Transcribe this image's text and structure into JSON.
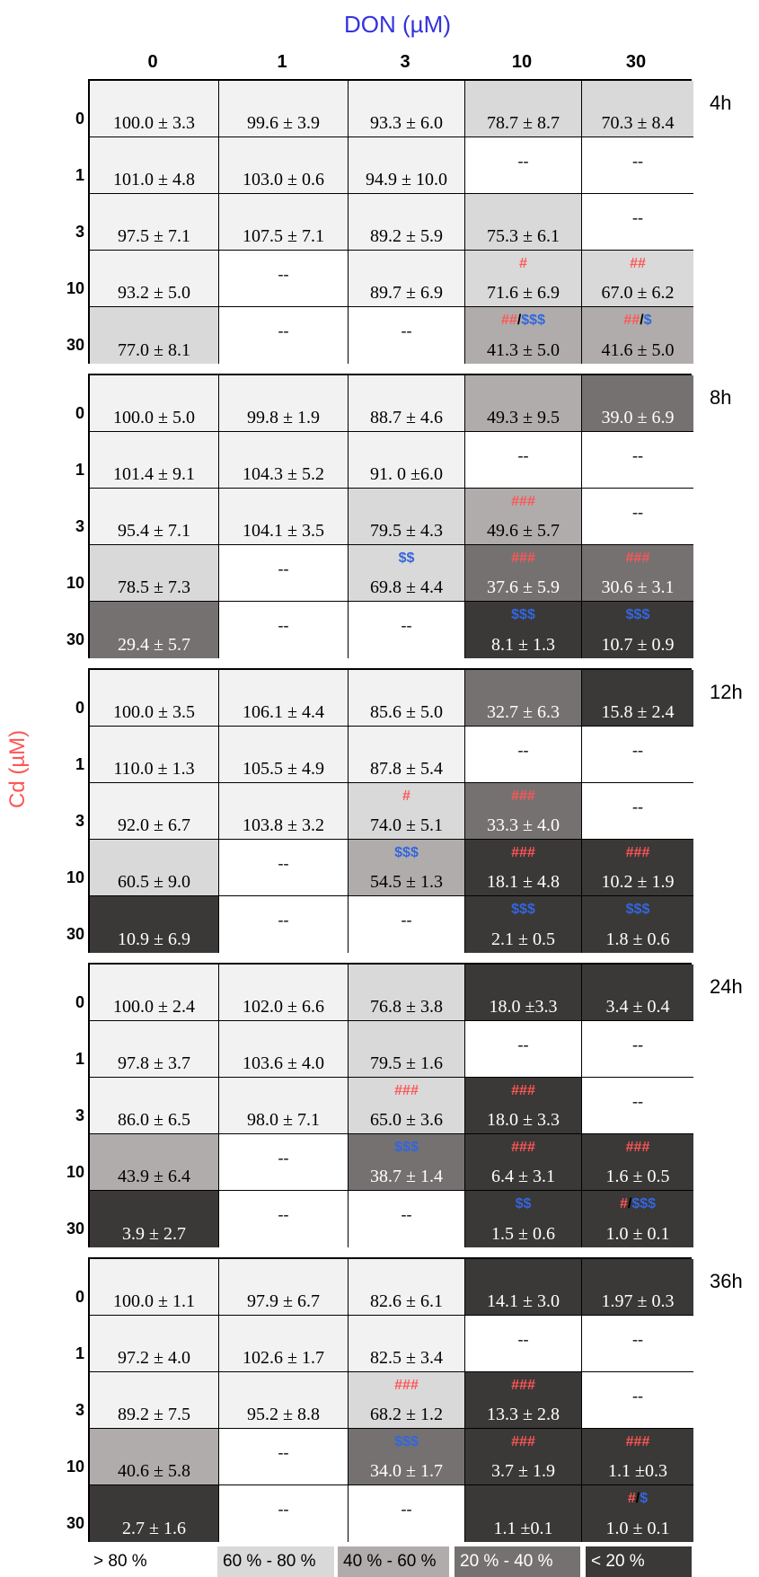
{
  "chart_data": {
    "type": "heatmap",
    "x_title": "DON (µM)",
    "y_title": "Cd    (µM)",
    "don_levels": [
      "0",
      "1",
      "3",
      "10",
      "30"
    ],
    "cd_levels": [
      "0",
      "1",
      "3",
      "10",
      "30"
    ],
    "missing_label": "--",
    "blocks": [
      {
        "time": "4h",
        "rows": [
          [
            {
              "v": "100.0 ± 3.3",
              "c": ">80"
            },
            {
              "v": "99.6 ± 3.9",
              "c": ">80"
            },
            {
              "v": "93.3 ± 6.0",
              "c": ">80"
            },
            {
              "v": "78.7 ± 8.7",
              "c": "60-80"
            },
            {
              "v": "70.3 ± 8.4",
              "c": "60-80"
            }
          ],
          [
            {
              "v": "101.0 ± 4.8",
              "c": ">80"
            },
            {
              "v": "103.0 ± 0.6",
              "c": ">80"
            },
            {
              "v": "94.9 ± 10.0",
              "c": ">80"
            },
            {
              "v": null,
              "c": "none"
            },
            {
              "v": null,
              "c": "none"
            }
          ],
          [
            {
              "v": "97.5 ± 7.1",
              "c": ">80"
            },
            {
              "v": "107.5 ± 7.1",
              "c": ">80"
            },
            {
              "v": "89.2 ± 5.9",
              "c": ">80"
            },
            {
              "v": "75.3 ± 6.1",
              "c": "60-80"
            },
            {
              "v": null,
              "c": "none"
            }
          ],
          [
            {
              "v": "93.2 ± 5.0",
              "c": ">80"
            },
            {
              "v": null,
              "c": "none"
            },
            {
              "v": "89.7 ± 6.9",
              "c": ">80"
            },
            {
              "v": "71.6 ± 6.9",
              "c": "60-80",
              "hash": "#"
            },
            {
              "v": "67.0 ± 6.2",
              "c": "60-80",
              "hash": "##"
            }
          ],
          [
            {
              "v": "77.0 ± 8.1",
              "c": "60-80"
            },
            {
              "v": null,
              "c": "none"
            },
            {
              "v": null,
              "c": "none"
            },
            {
              "v": "41.3 ± 5.0",
              "c": "40-60",
              "hash": "##",
              "dollar": "$$$"
            },
            {
              "v": "41.6 ± 5.0",
              "c": "40-60",
              "hash": "##",
              "dollar": "$"
            }
          ]
        ]
      },
      {
        "time": "8h",
        "rows": [
          [
            {
              "v": "100.0 ± 5.0",
              "c": ">80"
            },
            {
              "v": "99.8 ± 1.9",
              "c": ">80"
            },
            {
              "v": "88.7 ± 4.6",
              "c": ">80"
            },
            {
              "v": "49.3 ± 9.5",
              "c": "40-60"
            },
            {
              "v": "39.0 ± 6.9",
              "c": "20-40"
            }
          ],
          [
            {
              "v": "101.4 ± 9.1",
              "c": ">80"
            },
            {
              "v": "104.3 ± 5.2",
              "c": ">80"
            },
            {
              "v": "91. 0 ±6.0",
              "c": ">80"
            },
            {
              "v": null,
              "c": "none"
            },
            {
              "v": null,
              "c": "none"
            }
          ],
          [
            {
              "v": "95.4 ± 7.1",
              "c": ">80"
            },
            {
              "v": "104.1 ± 3.5",
              "c": ">80"
            },
            {
              "v": "79.5 ± 4.3",
              "c": "60-80"
            },
            {
              "v": "49.6 ± 5.7",
              "c": "40-60",
              "hash": "###"
            },
            {
              "v": null,
              "c": "none"
            }
          ],
          [
            {
              "v": "78.5 ± 7.3",
              "c": "60-80"
            },
            {
              "v": null,
              "c": "none"
            },
            {
              "v": "69.8 ± 4.4",
              "c": "60-80",
              "dollar": "$$"
            },
            {
              "v": "37.6 ± 5.9",
              "c": "20-40",
              "hash": "###"
            },
            {
              "v": "30.6 ± 3.1",
              "c": "20-40",
              "hash": "###"
            }
          ],
          [
            {
              "v": "29.4 ± 5.7",
              "c": "20-40"
            },
            {
              "v": null,
              "c": "none"
            },
            {
              "v": null,
              "c": "none"
            },
            {
              "v": "8.1 ± 1.3",
              "c": "<20",
              "dollar": "$$$"
            },
            {
              "v": "10.7 ± 0.9",
              "c": "<20",
              "dollar": "$$$"
            }
          ]
        ]
      },
      {
        "time": "12h",
        "rows": [
          [
            {
              "v": "100.0 ± 3.5",
              "c": ">80"
            },
            {
              "v": "106.1 ± 4.4",
              "c": ">80"
            },
            {
              "v": "85.6 ± 5.0",
              "c": ">80"
            },
            {
              "v": "32.7 ± 6.3",
              "c": "20-40"
            },
            {
              "v": "15.8 ± 2.4",
              "c": "<20"
            }
          ],
          [
            {
              "v": "110.0 ± 1.3",
              "c": ">80"
            },
            {
              "v": "105.5 ± 4.9",
              "c": ">80"
            },
            {
              "v": "87.8 ± 5.4",
              "c": ">80"
            },
            {
              "v": null,
              "c": "none"
            },
            {
              "v": null,
              "c": "none"
            }
          ],
          [
            {
              "v": "92.0 ± 6.7",
              "c": ">80"
            },
            {
              "v": "103.8 ± 3.2",
              "c": ">80"
            },
            {
              "v": "74.0 ± 5.1",
              "c": "60-80",
              "hash": "#"
            },
            {
              "v": "33.3 ± 4.0",
              "c": "20-40",
              "hash": "###"
            },
            {
              "v": null,
              "c": "none"
            }
          ],
          [
            {
              "v": "60.5 ± 9.0",
              "c": "60-80"
            },
            {
              "v": null,
              "c": "none"
            },
            {
              "v": "54.5 ± 1.3",
              "c": "40-60",
              "dollar": "$$$"
            },
            {
              "v": "18.1 ± 4.8",
              "c": "<20",
              "hash": "###"
            },
            {
              "v": "10.2 ± 1.9",
              "c": "<20",
              "hash": "###"
            }
          ],
          [
            {
              "v": "10.9 ± 6.9",
              "c": "<20"
            },
            {
              "v": null,
              "c": "none"
            },
            {
              "v": null,
              "c": "none"
            },
            {
              "v": "2.1 ±  0.5",
              "c": "<20",
              "dollar": "$$$"
            },
            {
              "v": "1.8 ± 0.6",
              "c": "<20",
              "dollar": "$$$"
            }
          ]
        ]
      },
      {
        "time": "24h",
        "rows": [
          [
            {
              "v": "100.0 ± 2.4",
              "c": ">80"
            },
            {
              "v": "102.0 ± 6.6",
              "c": ">80"
            },
            {
              "v": "76.8 ± 3.8",
              "c": "60-80"
            },
            {
              "v": "18.0 ±3.3",
              "c": "<20"
            },
            {
              "v": "3.4 ± 0.4",
              "c": "<20"
            }
          ],
          [
            {
              "v": "97.8 ± 3.7",
              "c": ">80"
            },
            {
              "v": "103.6 ± 4.0",
              "c": ">80"
            },
            {
              "v": "79.5 ± 1.6",
              "c": "60-80"
            },
            {
              "v": null,
              "c": "none"
            },
            {
              "v": null,
              "c": "none"
            }
          ],
          [
            {
              "v": "86.0 ± 6.5",
              "c": ">80"
            },
            {
              "v": "98.0 ± 7.1",
              "c": ">80"
            },
            {
              "v": "65.0 ± 3.6",
              "c": "60-80",
              "hash": "###"
            },
            {
              "v": "18.0 ± 3.3",
              "c": "<20",
              "hash": "###"
            },
            {
              "v": null,
              "c": "none"
            }
          ],
          [
            {
              "v": "43.9 ± 6.4",
              "c": "40-60"
            },
            {
              "v": null,
              "c": "none"
            },
            {
              "v": "38.7 ± 1.4",
              "c": "20-40",
              "dollar": "$$$"
            },
            {
              "v": "6.4 ± 3.1",
              "c": "<20",
              "hash": "###"
            },
            {
              "v": "1.6 ± 0.5",
              "c": "<20",
              "hash": "###"
            }
          ],
          [
            {
              "v": "3.9 ± 2.7",
              "c": "<20"
            },
            {
              "v": null,
              "c": "none"
            },
            {
              "v": null,
              "c": "none"
            },
            {
              "v": "1.5 ± 0.6",
              "c": "<20",
              "dollar": "$$"
            },
            {
              "v": "1.0 ± 0.1",
              "c": "<20",
              "hash": "#",
              "dollar": "$$$"
            }
          ]
        ]
      },
      {
        "time": "36h",
        "rows": [
          [
            {
              "v": "100.0 ± 1.1",
              "c": ">80"
            },
            {
              "v": "97.9 ± 6.7",
              "c": ">80"
            },
            {
              "v": "82.6 ± 6.1",
              "c": ">80"
            },
            {
              "v": "14.1 ± 3.0",
              "c": "<20"
            },
            {
              "v": "1.97 ± 0.3",
              "c": "<20"
            }
          ],
          [
            {
              "v": "97.2 ± 4.0",
              "c": ">80"
            },
            {
              "v": "102.6 ± 1.7",
              "c": ">80"
            },
            {
              "v": "82.5 ± 3.4",
              "c": ">80"
            },
            {
              "v": null,
              "c": "none"
            },
            {
              "v": null,
              "c": "none"
            }
          ],
          [
            {
              "v": "89.2 ± 7.5",
              "c": ">80"
            },
            {
              "v": "95.2 ± 8.8",
              "c": ">80"
            },
            {
              "v": "68.2 ± 1.2",
              "c": "60-80",
              "hash": "###"
            },
            {
              "v": "13.3 ± 2.8",
              "c": "<20",
              "hash": "###"
            },
            {
              "v": null,
              "c": "none"
            }
          ],
          [
            {
              "v": "40.6 ± 5.8",
              "c": "40-60"
            },
            {
              "v": null,
              "c": "none"
            },
            {
              "v": "34.0 ± 1.7",
              "c": "20-40",
              "dollar": "$$$"
            },
            {
              "v": "3.7 ± 1.9",
              "c": "<20",
              "hash": "###"
            },
            {
              "v": "1.1 ±0.3",
              "c": "<20",
              "hash": "###"
            }
          ],
          [
            {
              "v": "2.7 ± 1.6",
              "c": "<20"
            },
            {
              "v": null,
              "c": "none"
            },
            {
              "v": null,
              "c": "none"
            },
            {
              "v": "1.1 ±0.1",
              "c": "<20"
            },
            {
              "v": "1.0 ± 0.1",
              "c": "<20",
              "hash": "#",
              "dollar": "$"
            }
          ]
        ]
      }
    ],
    "legend": [
      {
        "key": ">80",
        "label": "> 80 %"
      },
      {
        "key": "60-80",
        "label": "60 % - 80 %"
      },
      {
        "key": "40-60",
        "label": "40 % - 60 %"
      },
      {
        "key": "20-40",
        "label": "20 % - 40 %"
      },
      {
        "key": "<20",
        "label": "< 20 %"
      }
    ],
    "colors": {
      ">80": "#f2f2f2",
      "60-80": "#d9d9d9",
      "40-60": "#b0acac",
      "20-40": "#757171",
      "<20": "#3b3838",
      "none": "#ffffff",
      "hash": "#ff5555",
      "dollar": "#3366dd",
      "title_don": "#3333dd",
      "title_cd": "#ff5555"
    }
  }
}
